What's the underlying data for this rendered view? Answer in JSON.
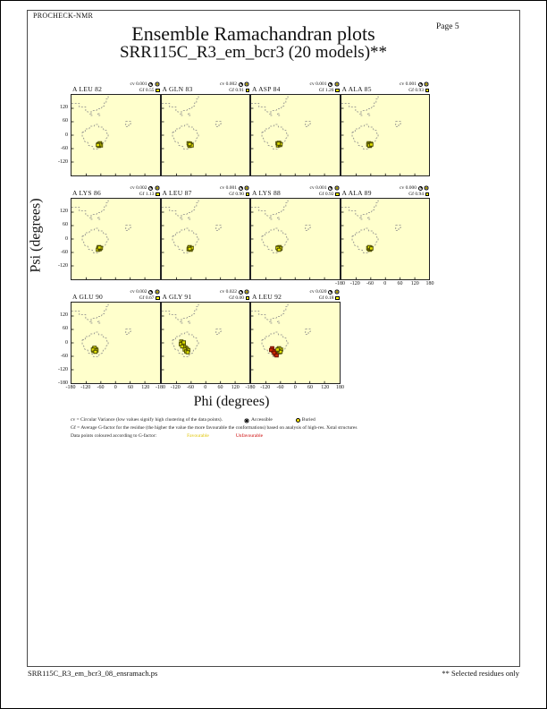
{
  "page": {
    "app_name": "PROCHECK-NMR",
    "page_label": "Page 5",
    "footer_left": "SRR115C_R3_em_bcr3_08_ensramach.ps",
    "footer_right": "** Selected residues only"
  },
  "chart_data": {
    "type": "scatter",
    "title": "Ensemble Ramachandran plots",
    "subtitle": "SRR115C_R3_em_bcr3 (20 models)**",
    "xlabel": "Phi (degrees)",
    "ylabel": "Psi (degrees)",
    "xlim": [
      -180,
      180
    ],
    "ylim": [
      -180,
      180
    ],
    "x_tick_labels": [
      -180,
      -120,
      -60,
      0,
      60,
      120
    ],
    "x_tick_end": 180,
    "y_tick_labels": [
      120,
      60,
      0,
      -60,
      -120
    ],
    "y_tick_bottom": -180,
    "tick_positions": [
      -120,
      -60,
      0,
      60,
      120
    ],
    "grid": "off",
    "background": "#ffffcc",
    "stat_labels": {
      "cv": "cv",
      "gf": "Gf"
    },
    "point_colors": {
      "favourable": "#e3e300",
      "unfavourable": "#cf2800"
    },
    "plots": [
      {
        "label": "A LEU 82",
        "cv": "0.001",
        "gf": "0.55",
        "points_favourable": [
          [
            -70,
            -40
          ],
          [
            -66,
            -44
          ],
          [
            -62,
            -40
          ],
          [
            -68,
            -48
          ],
          [
            -64,
            -36
          ],
          [
            -60,
            -46
          ],
          [
            -66,
            -42
          ],
          [
            -72,
            -44
          ]
        ],
        "points_unfavourable": []
      },
      {
        "label": "A GLN 83",
        "cv": "0.002",
        "gf": "0.91",
        "points_favourable": [
          [
            -68,
            -42
          ],
          [
            -64,
            -38
          ],
          [
            -60,
            -44
          ],
          [
            -66,
            -48
          ],
          [
            -70,
            -36
          ],
          [
            -62,
            -42
          ],
          [
            -58,
            -46
          ],
          [
            -66,
            -40
          ]
        ],
        "points_unfavourable": []
      },
      {
        "label": "A ASP 84",
        "cv": "0.001",
        "gf": "1.26",
        "points_favourable": [
          [
            -72,
            -36
          ],
          [
            -68,
            -42
          ],
          [
            -64,
            -38
          ],
          [
            -70,
            -46
          ],
          [
            -62,
            -44
          ],
          [
            -66,
            -34
          ],
          [
            -60,
            -40
          ],
          [
            -68,
            -38
          ]
        ],
        "points_unfavourable": []
      },
      {
        "label": "A ALA 85",
        "cv": "0.001",
        "gf": "0.93",
        "points_favourable": [
          [
            -66,
            -40
          ],
          [
            -62,
            -44
          ],
          [
            -68,
            -36
          ],
          [
            -64,
            -48
          ],
          [
            -70,
            -42
          ],
          [
            -60,
            -38
          ],
          [
            -66,
            -46
          ],
          [
            -58,
            -42
          ]
        ],
        "points_unfavourable": []
      },
      {
        "label": "A LYS 86",
        "cv": "0.002",
        "gf": "1.13",
        "points_favourable": [
          [
            -70,
            -42
          ],
          [
            -66,
            -46
          ],
          [
            -62,
            -40
          ],
          [
            -68,
            -36
          ],
          [
            -72,
            -48
          ],
          [
            -64,
            -44
          ],
          [
            -60,
            -40
          ],
          [
            -66,
            -38
          ]
        ],
        "points_unfavourable": []
      },
      {
        "label": "A LEU 87",
        "cv": "0.001",
        "gf": "0.90",
        "points_favourable": [
          [
            -68,
            -40
          ],
          [
            -64,
            -44
          ],
          [
            -60,
            -42
          ],
          [
            -66,
            -36
          ],
          [
            -70,
            -46
          ],
          [
            -62,
            -48
          ],
          [
            -58,
            -40
          ],
          [
            -66,
            -44
          ]
        ],
        "points_unfavourable": []
      },
      {
        "label": "A LYS 88",
        "cv": "0.001",
        "gf": "0.92",
        "points_favourable": [
          [
            -70,
            -38
          ],
          [
            -66,
            -42
          ],
          [
            -62,
            -44
          ],
          [
            -68,
            -46
          ],
          [
            -64,
            -36
          ],
          [
            -60,
            -42
          ],
          [
            -72,
            -40
          ],
          [
            -66,
            -48
          ]
        ],
        "points_unfavourable": []
      },
      {
        "label": "A ALA 89",
        "cv": "0.000",
        "gf": "0.94",
        "points_favourable": [
          [
            -66,
            -42
          ],
          [
            -62,
            -38
          ],
          [
            -68,
            -44
          ],
          [
            -64,
            -48
          ],
          [
            -70,
            -40
          ],
          [
            -60,
            -44
          ],
          [
            -66,
            -36
          ],
          [
            -58,
            -42
          ]
        ],
        "points_unfavourable": []
      },
      {
        "label": "A GLU 90",
        "cv": "0.002",
        "gf": "0.67",
        "points_favourable": [
          [
            -88,
            -26
          ],
          [
            -84,
            -32
          ],
          [
            -90,
            -36
          ],
          [
            -80,
            -28
          ],
          [
            -86,
            -22
          ],
          [
            -78,
            -34
          ],
          [
            -92,
            -30
          ],
          [
            -82,
            -40
          ]
        ],
        "points_unfavourable": []
      },
      {
        "label": "A GLY 91",
        "cv": "0.022",
        "gf": "0.00",
        "points_favourable": [
          [
            -100,
            6
          ],
          [
            -94,
            0
          ],
          [
            -102,
            -6
          ],
          [
            -90,
            -10
          ],
          [
            -96,
            -16
          ],
          [
            -84,
            -20
          ],
          [
            -78,
            -26
          ],
          [
            -86,
            -30
          ],
          [
            -72,
            -32
          ],
          [
            -80,
            -38
          ],
          [
            -90,
            2
          ],
          [
            -74,
            -42
          ]
        ],
        "points_unfavourable": []
      },
      {
        "label": "A LEU 92",
        "cv": "0.020",
        "gf": "0.18",
        "points_favourable": [
          [
            -68,
            -28
          ],
          [
            -62,
            -34
          ],
          [
            -70,
            -36
          ],
          [
            -64,
            -42
          ],
          [
            -58,
            -30
          ],
          [
            -66,
            -24
          ],
          [
            -60,
            -40
          ],
          [
            -72,
            -30
          ]
        ],
        "points_unfavourable": [
          [
            -94,
            -24
          ],
          [
            -90,
            -36
          ],
          [
            -98,
            -32
          ],
          [
            -82,
            -50
          ],
          [
            -76,
            -56
          ],
          [
            -86,
            -44
          ]
        ]
      }
    ],
    "contours": [
      [
        [
          -180,
          142
        ],
        [
          -148,
          142
        ],
        [
          -148,
          126
        ],
        [
          -122,
          126
        ],
        [
          -122,
          108
        ],
        [
          -114,
          104
        ],
        [
          -98,
          104
        ],
        [
          -94,
          110
        ],
        [
          -78,
          110
        ],
        [
          -74,
          118
        ],
        [
          -58,
          118
        ],
        [
          -54,
          130
        ],
        [
          -46,
          130
        ],
        [
          -46,
          144
        ],
        [
          -38,
          144
        ],
        [
          -38,
          162
        ],
        [
          -30,
          162
        ],
        [
          -30,
          180
        ]
      ],
      [
        [
          -104,
          96
        ],
        [
          -96,
          96
        ],
        [
          -96,
          88
        ],
        [
          -104,
          88
        ],
        [
          -104,
          96
        ]
      ],
      [
        [
          -72,
          96
        ],
        [
          -64,
          96
        ],
        [
          -64,
          88
        ],
        [
          -72,
          88
        ],
        [
          -72,
          96
        ]
      ],
      [
        [
          -136,
          14
        ],
        [
          -124,
          14
        ],
        [
          -124,
          28
        ],
        [
          -108,
          28
        ],
        [
          -104,
          40
        ],
        [
          -88,
          40
        ],
        [
          -84,
          48
        ],
        [
          -72,
          48
        ],
        [
          -68,
          36
        ],
        [
          -52,
          36
        ],
        [
          -48,
          22
        ],
        [
          -38,
          22
        ],
        [
          -34,
          6
        ],
        [
          -30,
          6
        ],
        [
          -30,
          -8
        ],
        [
          -38,
          -14
        ],
        [
          -42,
          -28
        ],
        [
          -50,
          -32
        ],
        [
          -54,
          -46
        ],
        [
          -66,
          -50
        ],
        [
          -70,
          -62
        ],
        [
          -90,
          -62
        ],
        [
          -94,
          -50
        ],
        [
          -110,
          -46
        ],
        [
          -114,
          -32
        ],
        [
          -126,
          -28
        ],
        [
          -130,
          -14
        ],
        [
          -136,
          -8
        ],
        [
          -136,
          14
        ]
      ],
      [
        [
          42,
          62
        ],
        [
          62,
          62
        ],
        [
          62,
          50
        ],
        [
          54,
          50
        ],
        [
          54,
          38
        ],
        [
          42,
          38
        ],
        [
          42,
          62
        ]
      ]
    ]
  },
  "legend": {
    "line1": "cv = Circular Variance (low values signify high clustering of the data points).",
    "accessible_label": "Accessible",
    "buried_label": "Buried",
    "line2": "Gf = Average G-factor for the residue (the higher the value the more favourable the conformations) based on analysis of high-res. Xstal structures",
    "line3": "Data points coloured according to G-factor:",
    "favourable_label": "Favourable",
    "unfavourable_label": "Unfavourable"
  }
}
